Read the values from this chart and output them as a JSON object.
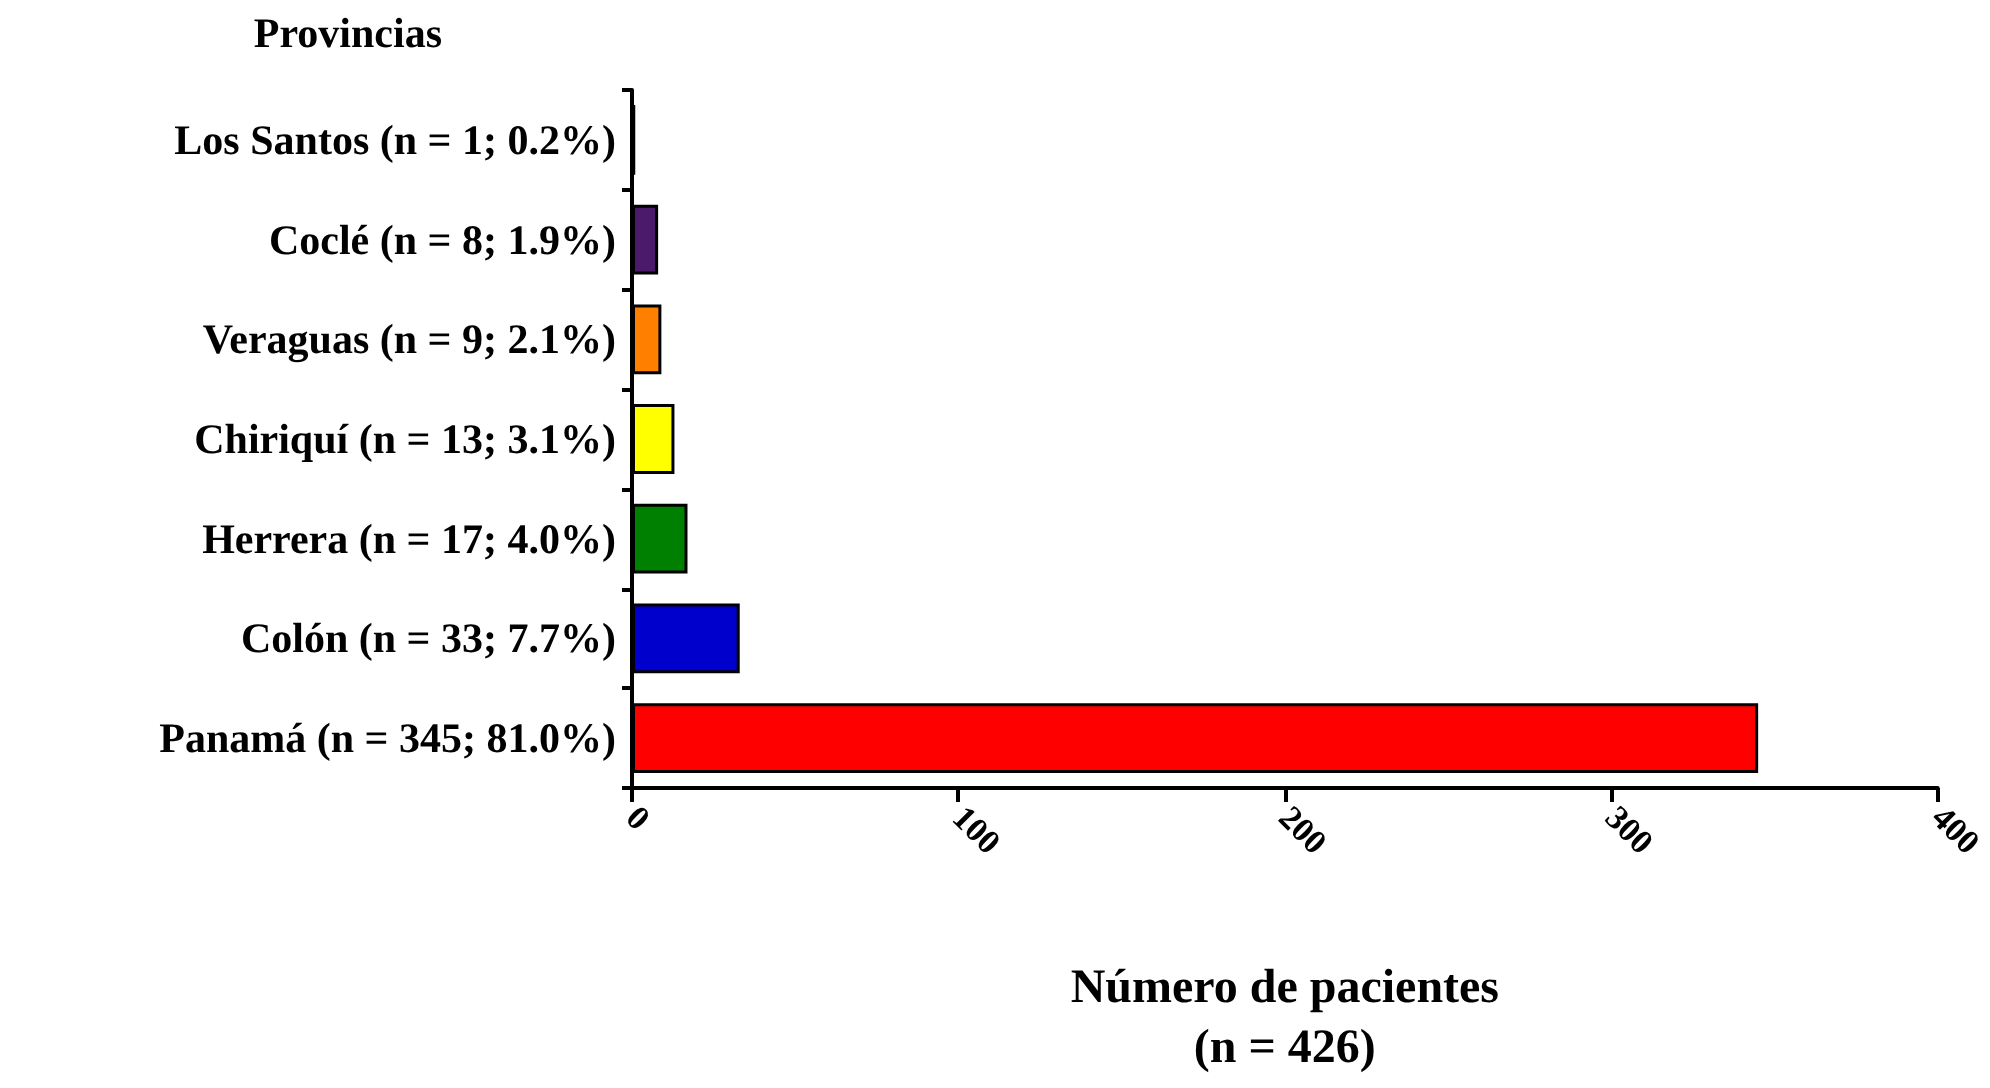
{
  "chart_data": {
    "type": "bar",
    "orientation": "horizontal",
    "ylabel": "Provincias",
    "xlabel": "Número de pacientes\n(n = 426)",
    "categories": [
      "Los Santos (n = 1; 0.2%)",
      "Coclé (n = 8; 1.9%)",
      "Veraguas (n = 9; 2.1%)",
      "Chiriquí (n = 13; 3.1%)",
      "Herrera (n = 17; 4.0%)",
      "Colón (n = 33; 7.7%)",
      "Panamá (n = 345; 81.0%)"
    ],
    "values": [
      1,
      8,
      9,
      13,
      17,
      33,
      345
    ],
    "colors": [
      "#3a2a4a",
      "#4b1a6b",
      "#ff8000",
      "#ffff00",
      "#008000",
      "#0000cc",
      "#ff0000"
    ],
    "xlim": [
      0,
      400
    ],
    "xticks": [
      0,
      100,
      200,
      300,
      400
    ],
    "grid": false
  }
}
